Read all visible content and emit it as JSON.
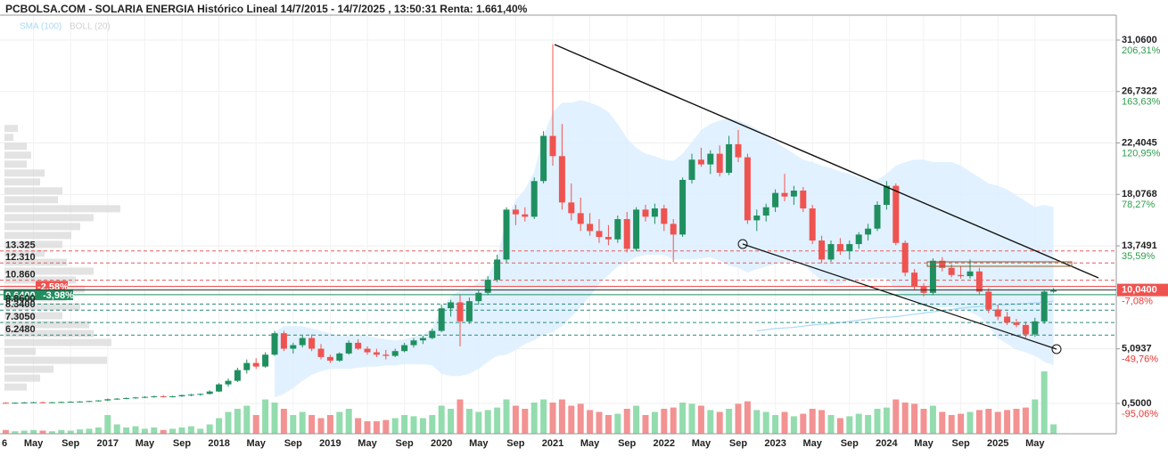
{
  "chart_data": {
    "type": "candlestick",
    "title": "PCBOLSA.COM - SOLARIA ENERGIA Histórico Lineal 14/7/2015 - 14/7/2025 , 13:50:31 Renta: 1.661,40%",
    "indicators": [
      {
        "name": "SMA (100)",
        "color": "#a9d9f7"
      },
      {
        "name": "BOLL (20)",
        "color": "#cfcfcf"
      }
    ],
    "x": [
      "6",
      null,
      null,
      null,
      "May",
      null,
      null,
      null,
      "Sep",
      null,
      null,
      null,
      "2017",
      null,
      null,
      null,
      "May",
      null,
      null,
      null,
      "Sep",
      null,
      null,
      null,
      "2018",
      null,
      null,
      null,
      "May",
      null,
      null,
      null,
      "Sep",
      null,
      null,
      null,
      "2019",
      null,
      null,
      null,
      "May",
      null,
      null,
      null,
      "Sep",
      null,
      null,
      null,
      "2020",
      null,
      null,
      null,
      "May",
      null,
      null,
      null,
      "Sep",
      null,
      null,
      null,
      "2021",
      null,
      null,
      null,
      "May",
      null,
      null,
      null,
      "Sep",
      null,
      null,
      null,
      "2022",
      null,
      null,
      null,
      "May",
      null,
      null,
      null,
      "Sep",
      null,
      null,
      null,
      "2023",
      null,
      null,
      null,
      "May",
      null,
      null,
      null,
      "Sep",
      null,
      null,
      null,
      "2024",
      null,
      null,
      null,
      "May",
      null,
      null,
      null,
      "Sep",
      null,
      null,
      null,
      "2025",
      null,
      null,
      null,
      "May",
      null,
      null
    ],
    "open": [
      0.5,
      0.55,
      0.52,
      0.56,
      0.58,
      0.6,
      0.58,
      0.6,
      0.62,
      0.64,
      0.66,
      0.7,
      0.75,
      0.85,
      0.9,
      0.95,
      1.0,
      1.05,
      1.1,
      1.05,
      1.1,
      1.2,
      1.25,
      1.3,
      1.5,
      2.1,
      2.4,
      3.3,
      3.9,
      3.6,
      4.6,
      6.4,
      5.1,
      5.4,
      6.0,
      5.1,
      4.4,
      4.1,
      4.7,
      5.6,
      5.1,
      4.8,
      4.6,
      4.5,
      4.9,
      5.4,
      5.8,
      6.0,
      6.6,
      8.5,
      9.0,
      7.4,
      9.1,
      9.8,
      10.9,
      12.6,
      16.8,
      16.4,
      16.2,
      19.2,
      23.0,
      21.3,
      17.4,
      16.5,
      15.6,
      15.0,
      14.5,
      14.3,
      16.0,
      13.5,
      16.8,
      16.2,
      16.9,
      15.6,
      14.7,
      19.3,
      21.0,
      20.6,
      21.5,
      19.9,
      22.3,
      21.2,
      15.9,
      16.3,
      17.0,
      18.2,
      17.9,
      18.4,
      16.9,
      14.2,
      12.6,
      13.9,
      13.3,
      13.9,
      14.7,
      15.2,
      17.2,
      18.8,
      14.0,
      11.5,
      10.3,
      9.8,
      12.5,
      11.9,
      11.3,
      11.2,
      11.6,
      9.9,
      8.4,
      7.8,
      7.3,
      7.1,
      6.3,
      7.4,
      9.9
    ],
    "high": [
      0.6,
      0.6,
      0.58,
      0.62,
      0.64,
      0.65,
      0.63,
      0.66,
      0.68,
      0.7,
      0.72,
      0.78,
      0.9,
      0.95,
      1.0,
      1.05,
      1.1,
      1.15,
      1.2,
      1.15,
      1.25,
      1.3,
      1.35,
      1.6,
      2.2,
      2.6,
      3.5,
      4.2,
      4.3,
      4.8,
      6.6,
      6.6,
      5.6,
      6.2,
      6.3,
      5.5,
      4.6,
      4.8,
      5.8,
      5.9,
      5.3,
      5.1,
      5.0,
      5.1,
      5.6,
      6.0,
      6.2,
      6.8,
      8.8,
      9.2,
      9.6,
      9.4,
      10.0,
      11.2,
      13.0,
      17.0,
      17.2,
      17.0,
      19.5,
      23.4,
      30.7,
      24.0,
      19.0,
      17.8,
      16.5,
      16.0,
      15.5,
      16.3,
      16.6,
      17.0,
      17.2,
      17.3,
      17.2,
      16.0,
      19.5,
      21.5,
      22.0,
      21.8,
      22.2,
      23.0,
      23.5,
      21.5,
      16.8,
      17.3,
      18.5,
      19.8,
      18.8,
      18.7,
      17.2,
      14.6,
      14.2,
      14.4,
      14.2,
      14.9,
      15.6,
      17.5,
      19.2,
      19.0,
      14.2,
      11.8,
      10.6,
      12.7,
      12.8,
      12.2,
      12.0,
      12.6,
      11.9,
      10.2,
      8.8,
      8.2,
      7.6,
      7.4,
      7.7,
      10.0,
      10.2
    ],
    "low": [
      0.45,
      0.5,
      0.48,
      0.52,
      0.54,
      0.55,
      0.54,
      0.56,
      0.58,
      0.6,
      0.62,
      0.66,
      0.7,
      0.8,
      0.85,
      0.9,
      0.95,
      0.98,
      1.0,
      1.0,
      1.05,
      1.1,
      1.15,
      1.25,
      1.45,
      1.9,
      2.3,
      3.0,
      3.4,
      3.5,
      4.5,
      4.9,
      4.7,
      5.2,
      4.9,
      4.2,
      3.9,
      4.0,
      4.6,
      5.0,
      4.6,
      4.4,
      4.2,
      4.4,
      4.8,
      5.2,
      5.5,
      5.9,
      6.5,
      7.8,
      5.3,
      7.2,
      8.8,
      9.6,
      10.7,
      12.3,
      15.5,
      15.8,
      16.0,
      19.0,
      20.5,
      16.8,
      15.9,
      15.0,
      14.6,
      14.0,
      13.8,
      14.0,
      13.2,
      13.3,
      15.8,
      15.6,
      15.0,
      12.4,
      14.5,
      19.0,
      20.4,
      19.8,
      19.6,
      19.7,
      20.8,
      15.6,
      15.0,
      15.8,
      16.6,
      17.5,
      17.2,
      16.6,
      13.9,
      12.3,
      12.4,
      13.0,
      12.6,
      13.5,
      14.2,
      15.0,
      16.8,
      13.8,
      11.2,
      10.0,
      9.5,
      9.6,
      11.6,
      11.1,
      11.0,
      11.0,
      9.6,
      8.1,
      7.5,
      7.1,
      6.9,
      6.0,
      6.1,
      7.2,
      9.8
    ],
    "close": [
      0.55,
      0.52,
      0.56,
      0.58,
      0.6,
      0.58,
      0.6,
      0.62,
      0.64,
      0.66,
      0.7,
      0.75,
      0.85,
      0.9,
      0.95,
      1.0,
      1.05,
      1.1,
      1.05,
      1.1,
      1.2,
      1.25,
      1.3,
      1.5,
      2.1,
      2.4,
      3.3,
      3.9,
      3.6,
      4.6,
      6.4,
      5.1,
      5.4,
      6.0,
      5.1,
      4.4,
      4.1,
      4.7,
      5.6,
      5.1,
      4.8,
      4.6,
      4.5,
      4.9,
      5.4,
      5.8,
      6.0,
      6.6,
      8.5,
      9.0,
      7.4,
      9.1,
      9.8,
      10.9,
      12.6,
      16.8,
      16.4,
      16.2,
      19.2,
      23.0,
      21.3,
      17.4,
      16.5,
      15.6,
      15.0,
      14.5,
      14.3,
      16.0,
      13.5,
      16.8,
      16.2,
      16.9,
      15.6,
      14.7,
      19.3,
      21.0,
      20.6,
      21.5,
      19.9,
      22.3,
      21.2,
      15.9,
      16.3,
      17.0,
      18.2,
      17.9,
      18.4,
      16.9,
      14.2,
      12.6,
      13.9,
      13.3,
      13.9,
      14.7,
      15.2,
      17.2,
      18.8,
      14.0,
      11.5,
      10.3,
      9.8,
      12.5,
      11.9,
      11.3,
      11.2,
      11.6,
      9.9,
      8.4,
      7.8,
      7.3,
      7.1,
      6.3,
      7.4,
      9.9,
      10.04
    ],
    "volume": [
      5,
      6,
      4,
      5,
      6,
      5,
      4,
      6,
      5,
      7,
      8,
      10,
      30,
      15,
      10,
      12,
      8,
      10,
      6,
      8,
      10,
      12,
      8,
      15,
      25,
      35,
      40,
      45,
      30,
      55,
      50,
      40,
      30,
      35,
      30,
      25,
      30,
      35,
      40,
      25,
      20,
      20,
      22,
      25,
      30,
      28,
      25,
      30,
      45,
      40,
      55,
      40,
      35,
      38,
      42,
      55,
      45,
      40,
      50,
      55,
      50,
      55,
      45,
      48,
      38,
      35,
      30,
      32,
      40,
      45,
      30,
      35,
      40,
      42,
      50,
      48,
      45,
      38,
      35,
      40,
      48,
      52,
      38,
      35,
      30,
      35,
      28,
      32,
      40,
      38,
      30,
      25,
      28,
      32,
      30,
      40,
      42,
      55,
      50,
      48,
      40,
      45,
      35,
      30,
      32,
      35,
      38,
      40,
      35,
      38,
      40,
      42,
      55,
      100,
      15
    ],
    "boll_upper": [
      null,
      null,
      null,
      null,
      null,
      null,
      null,
      null,
      null,
      null,
      null,
      null,
      null,
      null,
      null,
      null,
      null,
      null,
      null,
      null,
      null,
      null,
      null,
      null,
      null,
      null,
      null,
      null,
      null,
      null,
      6.5,
      7,
      7,
      7,
      6.8,
      6.6,
      6.4,
      6.2,
      6.2,
      6.3,
      6.2,
      6.0,
      5.9,
      5.8,
      5.9,
      6.1,
      6.3,
      6.8,
      8.5,
      9.5,
      10,
      10.3,
      10.6,
      11.2,
      12.8,
      16,
      17.6,
      18.5,
      20,
      23,
      25,
      25.8,
      25.8,
      26,
      25.8,
      25.5,
      25,
      24,
      22.8,
      22,
      21.5,
      21.3,
      21,
      20.9,
      21.5,
      22.5,
      23.5,
      24,
      24.3,
      24.5,
      24.3,
      24,
      23.6,
      23,
      22.5,
      22,
      21.5,
      21,
      20.8,
      20.5,
      20.3,
      20,
      19.8,
      19.5,
      19.3,
      19.3,
      19.8,
      20.5,
      20.8,
      21,
      21,
      20.8,
      20.8,
      20.8,
      20.5,
      20,
      19.5,
      19,
      18.8,
      18.5,
      18,
      17.5,
      17,
      17.2,
      17
    ],
    "boll_lower": [
      null,
      null,
      null,
      null,
      null,
      null,
      null,
      null,
      null,
      null,
      null,
      null,
      null,
      null,
      null,
      null,
      null,
      null,
      null,
      null,
      null,
      null,
      null,
      null,
      null,
      null,
      null,
      null,
      null,
      null,
      1.0,
      1.3,
      1.8,
      2.4,
      2.9,
      3.2,
      3.4,
      3.4,
      3.4,
      3.5,
      3.6,
      3.6,
      3.7,
      3.7,
      3.8,
      3.8,
      3.8,
      3.7,
      3.0,
      2.8,
      2.8,
      3.0,
      3.4,
      4.0,
      4.5,
      4.6,
      5.0,
      5.5,
      5.8,
      6.3,
      6.5,
      7,
      7.8,
      8.6,
      9.5,
      10.5,
      11.3,
      12,
      12.4,
      12.8,
      13,
      13,
      13,
      12.6,
      12.6,
      12.6,
      12.7,
      12.8,
      12.5,
      12.1,
      11.9,
      11.5,
      11.8,
      12,
      12.2,
      12.4,
      12.4,
      12.2,
      11.5,
      10.8,
      10.5,
      10.5,
      10.8,
      11,
      11,
      11,
      11,
      10,
      9.5,
      9,
      8.7,
      8.6,
      8.6,
      8.6,
      8.5,
      8.2,
      7.8,
      7,
      6,
      5.5,
      5,
      4.8,
      4.5,
      4.0,
      3.7
    ],
    "sma": [
      null,
      null,
      null,
      null,
      null,
      null,
      null,
      null,
      null,
      null,
      null,
      null,
      null,
      null,
      null,
      null,
      null,
      null,
      null,
      null,
      null,
      null,
      null,
      null,
      null,
      null,
      null,
      null,
      null,
      null,
      null,
      null,
      null,
      null,
      null,
      null,
      null,
      null,
      null,
      null,
      null,
      null,
      null,
      null,
      null,
      null,
      null,
      null,
      null,
      null,
      null,
      null,
      null,
      null,
      null,
      null,
      null,
      null,
      null,
      null,
      null,
      null,
      null,
      null,
      null,
      null,
      null,
      null,
      null,
      null,
      null,
      null,
      null,
      null,
      null,
      null,
      null,
      null,
      null,
      null,
      null,
      null,
      6.6,
      6.7,
      6.8,
      6.85,
      6.9,
      7.0,
      7.1,
      7.15,
      7.2,
      7.3,
      7.4,
      7.5,
      7.6,
      7.7,
      7.75,
      7.8,
      7.9,
      8.0,
      8.1,
      8.2,
      8.3,
      8.4,
      8.5,
      8.6,
      8.65,
      8.7,
      8.75,
      8.8,
      8.85,
      8.9,
      8.95,
      9.0,
      9.1
    ],
    "colors": {
      "up": "#1f8f5f",
      "down": "#ef5350",
      "volume_up": "#93dcae",
      "volume_down": "#f39292",
      "band": "#dcefff",
      "profile": "#dadada"
    },
    "ylim": [
      -2.05,
      33.38
    ],
    "yticks": [
      {
        "value": 31.06,
        "label": "31,0600"
      },
      {
        "value": 26.7322,
        "label": "26,7322"
      },
      {
        "value": 22.4045,
        "label": "22,4045"
      },
      {
        "value": 18.0768,
        "label": "18,0768"
      },
      {
        "value": 13.7491,
        "label": "13,7491"
      },
      {
        "value": 5.0937,
        "label": "5,0937"
      },
      {
        "value": 0.5,
        "label": "0,5000"
      }
    ],
    "ytick_changes": [
      "206,31%",
      "163,63%",
      "120,95%",
      "78,27%",
      "35,59%",
      "-49,76%",
      "-95,06%"
    ],
    "grid": true,
    "last": {
      "value": 10.04,
      "label": "10,0400",
      "change": "-7,08%"
    },
    "levels": [
      {
        "value": 13.325,
        "label": "13.325",
        "color": "#e35d5d"
      },
      {
        "value": 12.31,
        "label": "12.310",
        "color": "#e35d5d"
      },
      {
        "value": 10.86,
        "label": "10.860",
        "color": "#e35d5d"
      },
      {
        "value": 10.35,
        "change": "-2,58%",
        "color": "#ef5350"
      },
      {
        "value": 9.64,
        "label": "9.6400",
        "change": "-3,98%",
        "color": "#1f8f5f"
      },
      {
        "value": 8.86,
        "label": "8.8600",
        "color": "#2a8a7a"
      },
      {
        "value": 8.34,
        "label": "8.3400",
        "color": "#2a8a7a"
      },
      {
        "value": 7.305,
        "label": "7.3050",
        "color": "#2a8a7a"
      },
      {
        "value": 6.248,
        "label": "6.2480",
        "color": "#2a8a7a"
      }
    ],
    "profile_bins": [
      1.5,
      2.25,
      3.0,
      3.75,
      4.5,
      5.25,
      6.0,
      6.75,
      7.5,
      8.25,
      9.0,
      9.75,
      10.5,
      11.25,
      12.0,
      12.75,
      13.5,
      14.25,
      15.0,
      15.75,
      16.5,
      17.25,
      18.0,
      18.75,
      19.5,
      20.25,
      21.0,
      21.75,
      22.5,
      23.25,
      24.0
    ],
    "profile_volumes": [
      25,
      40,
      55,
      115,
      35,
      120,
      100,
      95,
      65,
      85,
      70,
      90,
      80,
      100,
      70,
      45,
      65,
      75,
      85,
      100,
      130,
      60,
      65,
      40,
      45,
      25,
      30,
      25,
      10,
      15
    ]
  }
}
